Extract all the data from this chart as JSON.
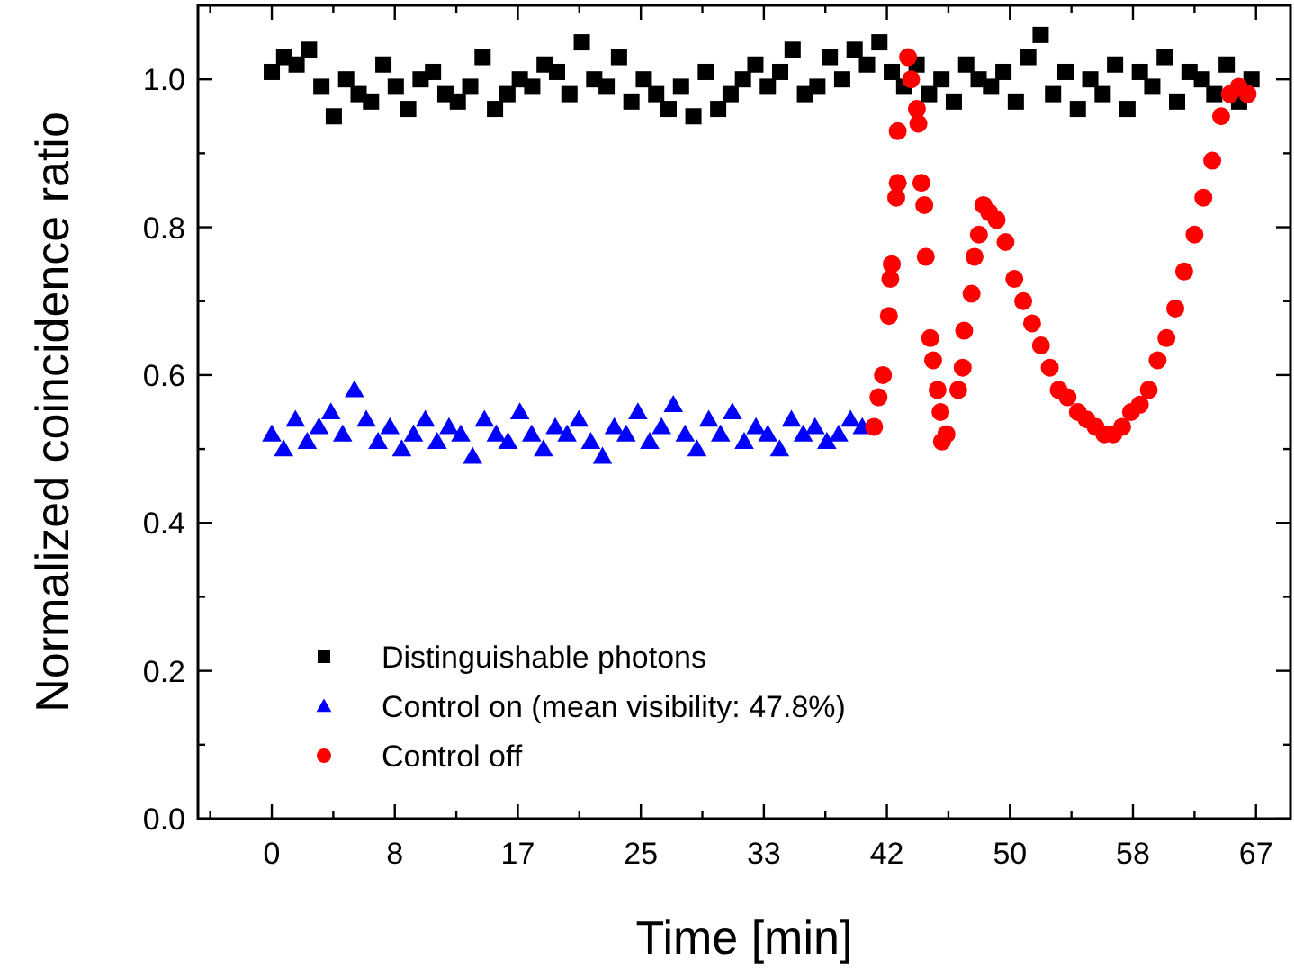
{
  "chart_data": {
    "type": "scatter",
    "xlabel": "Time [min]",
    "ylabel": "Normalized coincidence ratio",
    "xlim": [
      -5,
      69
    ],
    "ylim": [
      0,
      1.1
    ],
    "xticks": [
      {
        "value": -4.167,
        "label": null
      },
      {
        "value": 0,
        "label": "0"
      },
      {
        "value": 4.167,
        "label": null
      },
      {
        "value": 8.333,
        "label": "8"
      },
      {
        "value": 12.5,
        "label": null
      },
      {
        "value": 16.667,
        "label": "17"
      },
      {
        "value": 20.833,
        "label": null
      },
      {
        "value": 25,
        "label": "25"
      },
      {
        "value": 29.167,
        "label": null
      },
      {
        "value": 33.333,
        "label": "33"
      },
      {
        "value": 37.5,
        "label": null
      },
      {
        "value": 41.667,
        "label": "42"
      },
      {
        "value": 45.833,
        "label": null
      },
      {
        "value": 50,
        "label": "50"
      },
      {
        "value": 54.167,
        "label": null
      },
      {
        "value": 58.333,
        "label": "58"
      },
      {
        "value": 62.5,
        "label": null
      },
      {
        "value": 66.667,
        "label": "67"
      }
    ],
    "yticks": [
      {
        "value": 0,
        "label": "0.0"
      },
      {
        "value": 0.1,
        "label": null
      },
      {
        "value": 0.2,
        "label": "0.2"
      },
      {
        "value": 0.3,
        "label": null
      },
      {
        "value": 0.4,
        "label": "0.4"
      },
      {
        "value": 0.5,
        "label": null
      },
      {
        "value": 0.6,
        "label": "0.6"
      },
      {
        "value": 0.7,
        "label": null
      },
      {
        "value": 0.8,
        "label": "0.8"
      },
      {
        "value": 0.9,
        "label": null
      },
      {
        "value": 1.0,
        "label": "1.0"
      }
    ],
    "grid": false,
    "legend": "bottom left",
    "series": [
      {
        "name": "Distinguishable photons",
        "color": "#000000",
        "marker": "square",
        "x": [
          0,
          0.84,
          1.68,
          2.52,
          3.36,
          4.2,
          5.04,
          5.88,
          6.72,
          7.56,
          8.4,
          9.24,
          10.08,
          10.92,
          11.76,
          12.6,
          13.44,
          14.28,
          15.12,
          15.96,
          16.8,
          17.64,
          18.48,
          19.32,
          20.16,
          21,
          21.84,
          22.68,
          23.52,
          24.36,
          25.2,
          26.04,
          26.88,
          27.72,
          28.56,
          29.4,
          30.24,
          31.08,
          31.92,
          32.76,
          33.6,
          34.44,
          35.28,
          36.12,
          36.96,
          37.8,
          38.64,
          39.48,
          40.32,
          41.16,
          42,
          42.84,
          43.68,
          44.52,
          45.36,
          46.2,
          47.04,
          47.88,
          48.72,
          49.56,
          50.4,
          51.24,
          52.08,
          52.92,
          53.76,
          54.6,
          55.44,
          56.28,
          57.12,
          57.96,
          58.8,
          59.64,
          60.48,
          61.32,
          62.16,
          63,
          63.84,
          64.68,
          65.52,
          66.36
        ],
        "values": [
          1.01,
          1.03,
          1.02,
          1.04,
          0.99,
          0.95,
          1.0,
          0.98,
          0.97,
          1.02,
          0.99,
          0.96,
          1.0,
          1.01,
          0.98,
          0.97,
          0.99,
          1.03,
          0.96,
          0.98,
          1.0,
          0.99,
          1.02,
          1.01,
          0.98,
          1.05,
          1.0,
          0.99,
          1.03,
          0.97,
          1.0,
          0.98,
          0.96,
          0.99,
          0.95,
          1.01,
          0.96,
          0.98,
          1.0,
          1.02,
          0.99,
          1.01,
          1.04,
          0.98,
          0.99,
          1.03,
          1.0,
          1.04,
          1.02,
          1.05,
          1.01,
          0.99,
          1.02,
          0.98,
          1.0,
          0.97,
          1.02,
          1.0,
          0.99,
          1.01,
          0.97,
          1.03,
          1.06,
          0.98,
          1.01,
          0.96,
          1.0,
          0.98,
          1.02,
          0.96,
          1.01,
          0.99,
          1.03,
          0.97,
          1.01,
          1.0,
          0.98,
          1.02,
          0.97,
          1.0
        ]
      },
      {
        "name": "Control on (mean visibility: 47.8%)",
        "color": "#0000ff",
        "marker": "triangle",
        "x": [
          0,
          0.8,
          1.6,
          2.4,
          3.2,
          4,
          4.8,
          5.6,
          6.4,
          7.2,
          8,
          8.8,
          9.6,
          10.4,
          11.2,
          12,
          12.8,
          13.6,
          14.4,
          15.2,
          16,
          16.8,
          17.6,
          18.4,
          19.2,
          20,
          20.8,
          21.6,
          22.4,
          23.2,
          24,
          24.8,
          25.6,
          26.4,
          27.2,
          28,
          28.8,
          29.6,
          30.4,
          31.2,
          32,
          32.8,
          33.6,
          34.4,
          35.2,
          36,
          36.8,
          37.6,
          38.4,
          39.2,
          40
        ],
        "values": [
          0.52,
          0.5,
          0.54,
          0.51,
          0.53,
          0.55,
          0.52,
          0.58,
          0.54,
          0.51,
          0.53,
          0.5,
          0.52,
          0.54,
          0.51,
          0.53,
          0.52,
          0.49,
          0.54,
          0.52,
          0.51,
          0.55,
          0.52,
          0.5,
          0.53,
          0.52,
          0.54,
          0.51,
          0.49,
          0.53,
          0.52,
          0.55,
          0.51,
          0.53,
          0.56,
          0.52,
          0.5,
          0.54,
          0.52,
          0.55,
          0.51,
          0.53,
          0.52,
          0.5,
          0.54,
          0.52,
          0.53,
          0.51,
          0.52,
          0.54,
          0.53
        ]
      },
      {
        "name": "Control off",
        "color": "#ff0000",
        "marker": "circle",
        "x": [
          40.8,
          41.1,
          41.4,
          41.8,
          41.9,
          42.0,
          42.3,
          42.4,
          42.4,
          43.1,
          43.3,
          43.7,
          43.8,
          44.0,
          44.2,
          44.3,
          44.6,
          44.8,
          45.1,
          45.3,
          45.4,
          45.7,
          46.5,
          46.8,
          46.9,
          47.4,
          47.6,
          47.9,
          48.2,
          48.6,
          49.1,
          49.7,
          50.3,
          50.9,
          51.5,
          52.1,
          52.7,
          53.3,
          53.9,
          54.6,
          55.2,
          55.8,
          56.4,
          57.0,
          57.6,
          58.2,
          58.8,
          59.4,
          60.0,
          60.6,
          61.2,
          61.8,
          62.5,
          63.1,
          63.7,
          64.3,
          64.9,
          65.5,
          66.1
        ],
        "values": [
          0.53,
          0.57,
          0.6,
          0.68,
          0.73,
          0.75,
          0.84,
          0.86,
          0.93,
          1.03,
          1.0,
          0.96,
          0.94,
          0.86,
          0.83,
          0.76,
          0.65,
          0.62,
          0.58,
          0.55,
          0.51,
          0.52,
          0.58,
          0.61,
          0.66,
          0.71,
          0.76,
          0.79,
          0.83,
          0.82,
          0.81,
          0.78,
          0.73,
          0.7,
          0.67,
          0.64,
          0.61,
          0.58,
          0.57,
          0.55,
          0.54,
          0.53,
          0.52,
          0.52,
          0.53,
          0.55,
          0.56,
          0.58,
          0.62,
          0.65,
          0.69,
          0.74,
          0.79,
          0.84,
          0.89,
          0.95,
          0.98,
          0.99,
          0.98
        ]
      }
    ]
  }
}
